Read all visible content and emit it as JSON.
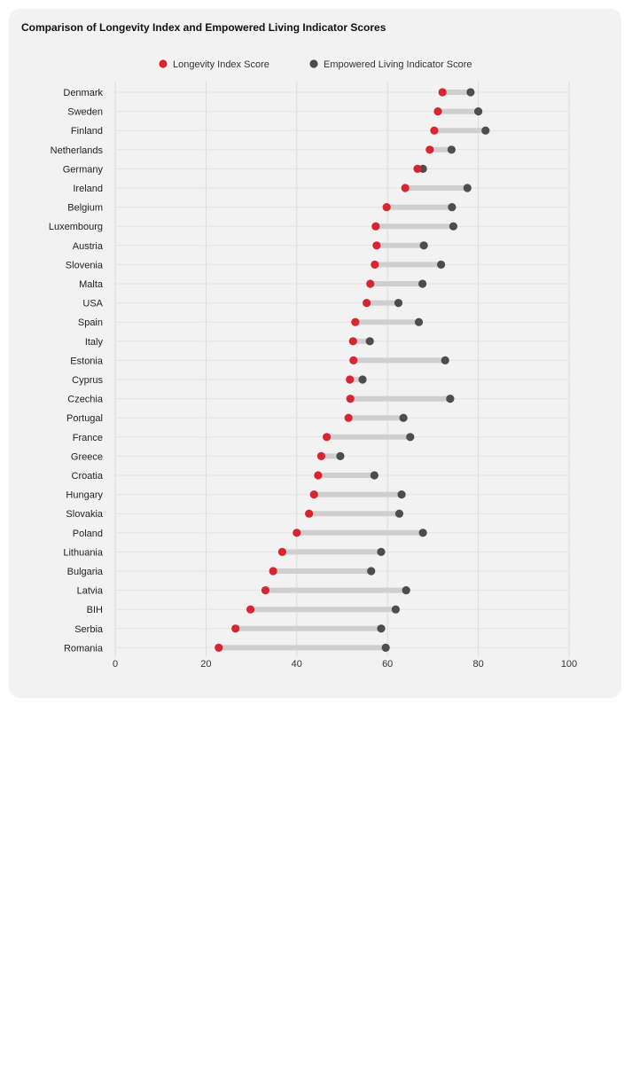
{
  "chart_data": {
    "type": "dumbbell",
    "title": "Comparison of Longevity Index and Empowered Living Indicator Scores",
    "series": [
      {
        "name": "Longevity Index Score",
        "color": "#d62631",
        "values": [
          72.1,
          71.1,
          70.3,
          69.3,
          66.6,
          63.9,
          59.8,
          57.4,
          57.6,
          57.2,
          56.2,
          55.4,
          52.9,
          52.4,
          52.5,
          51.7,
          51.8,
          51.4,
          46.6,
          45.4,
          44.7,
          43.8,
          42.7,
          40.0,
          36.8,
          34.8,
          33.1,
          29.8,
          26.5,
          22.8
        ]
      },
      {
        "name": "Empowered Living Indicator Score",
        "color": "#4d4d4d",
        "values": [
          78.3,
          80.0,
          81.6,
          74.1,
          67.8,
          77.6,
          74.2,
          74.5,
          68.0,
          71.8,
          67.7,
          62.4,
          66.9,
          56.1,
          72.7,
          54.5,
          73.8,
          63.5,
          65.0,
          49.6,
          57.1,
          63.1,
          62.6,
          67.8,
          58.6,
          56.4,
          64.1,
          61.8,
          58.6,
          59.6
        ]
      }
    ],
    "categories": [
      "Denmark",
      "Sweden",
      "Finland",
      "Netherlands",
      "Germany",
      "Ireland",
      "Belgium",
      "Luxembourg",
      "Austria",
      "Slovenia",
      "Malta",
      "USA",
      "Spain",
      "Italy",
      "Estonia",
      "Cyprus",
      "Czechia",
      "Portugal",
      "France",
      "Greece",
      "Croatia",
      "Hungary",
      "Slovakia",
      "Poland",
      "Lithuania",
      "Bulgaria",
      "Latvia",
      "BIH",
      "Serbia",
      "Romania"
    ],
    "xlim": [
      0,
      100
    ],
    "xticks": [
      "0",
      "20",
      "40",
      "60",
      "80",
      "100"
    ],
    "grid": true,
    "legend_position": "top",
    "connector_color": "#cfcfcf"
  }
}
